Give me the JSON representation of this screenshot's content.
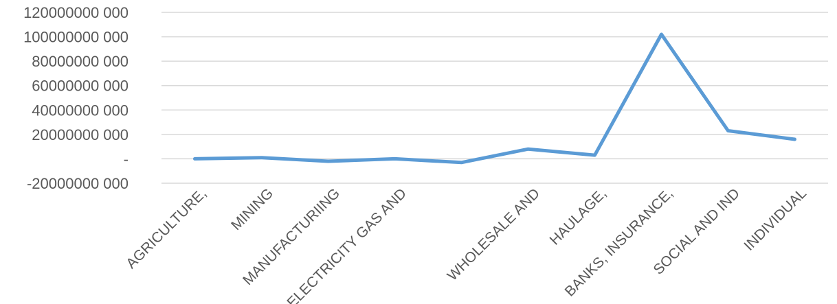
{
  "chart_data": {
    "type": "line",
    "title": "",
    "xlabel": "",
    "ylabel": "",
    "categories": [
      "AGRICULTURE,",
      "MINING",
      "MANUFACTURIING",
      "ELECTRICITY GAS AND",
      "",
      "WHOLESALE AND",
      "HAULAGE,",
      "BANKS, INSURANCE,",
      "SOCIAL AND IND",
      "INDIVIDUAL"
    ],
    "series": [
      {
        "values": [
          0,
          1000000000,
          -2000000000,
          0,
          -3000000000,
          8000000000,
          3000000000,
          102000000000,
          23000000000,
          16000000000
        ]
      }
    ],
    "ylim": [
      -20000000000,
      120000000000
    ],
    "y_ticks": [
      120000000000,
      100000000000,
      80000000000,
      60000000000,
      40000000000,
      20000000000,
      0,
      -20000000000
    ],
    "y_tick_labels": [
      "120000000 000",
      "100000000 000",
      "80000000 000",
      "60000000 000",
      "40000000 000",
      "20000000 000",
      "-",
      "-20000000 000"
    ],
    "grid": true,
    "legend": "none",
    "line_color": "#5b9bd5",
    "grid_color": "#d9d9d9",
    "text_color": "#595959"
  }
}
